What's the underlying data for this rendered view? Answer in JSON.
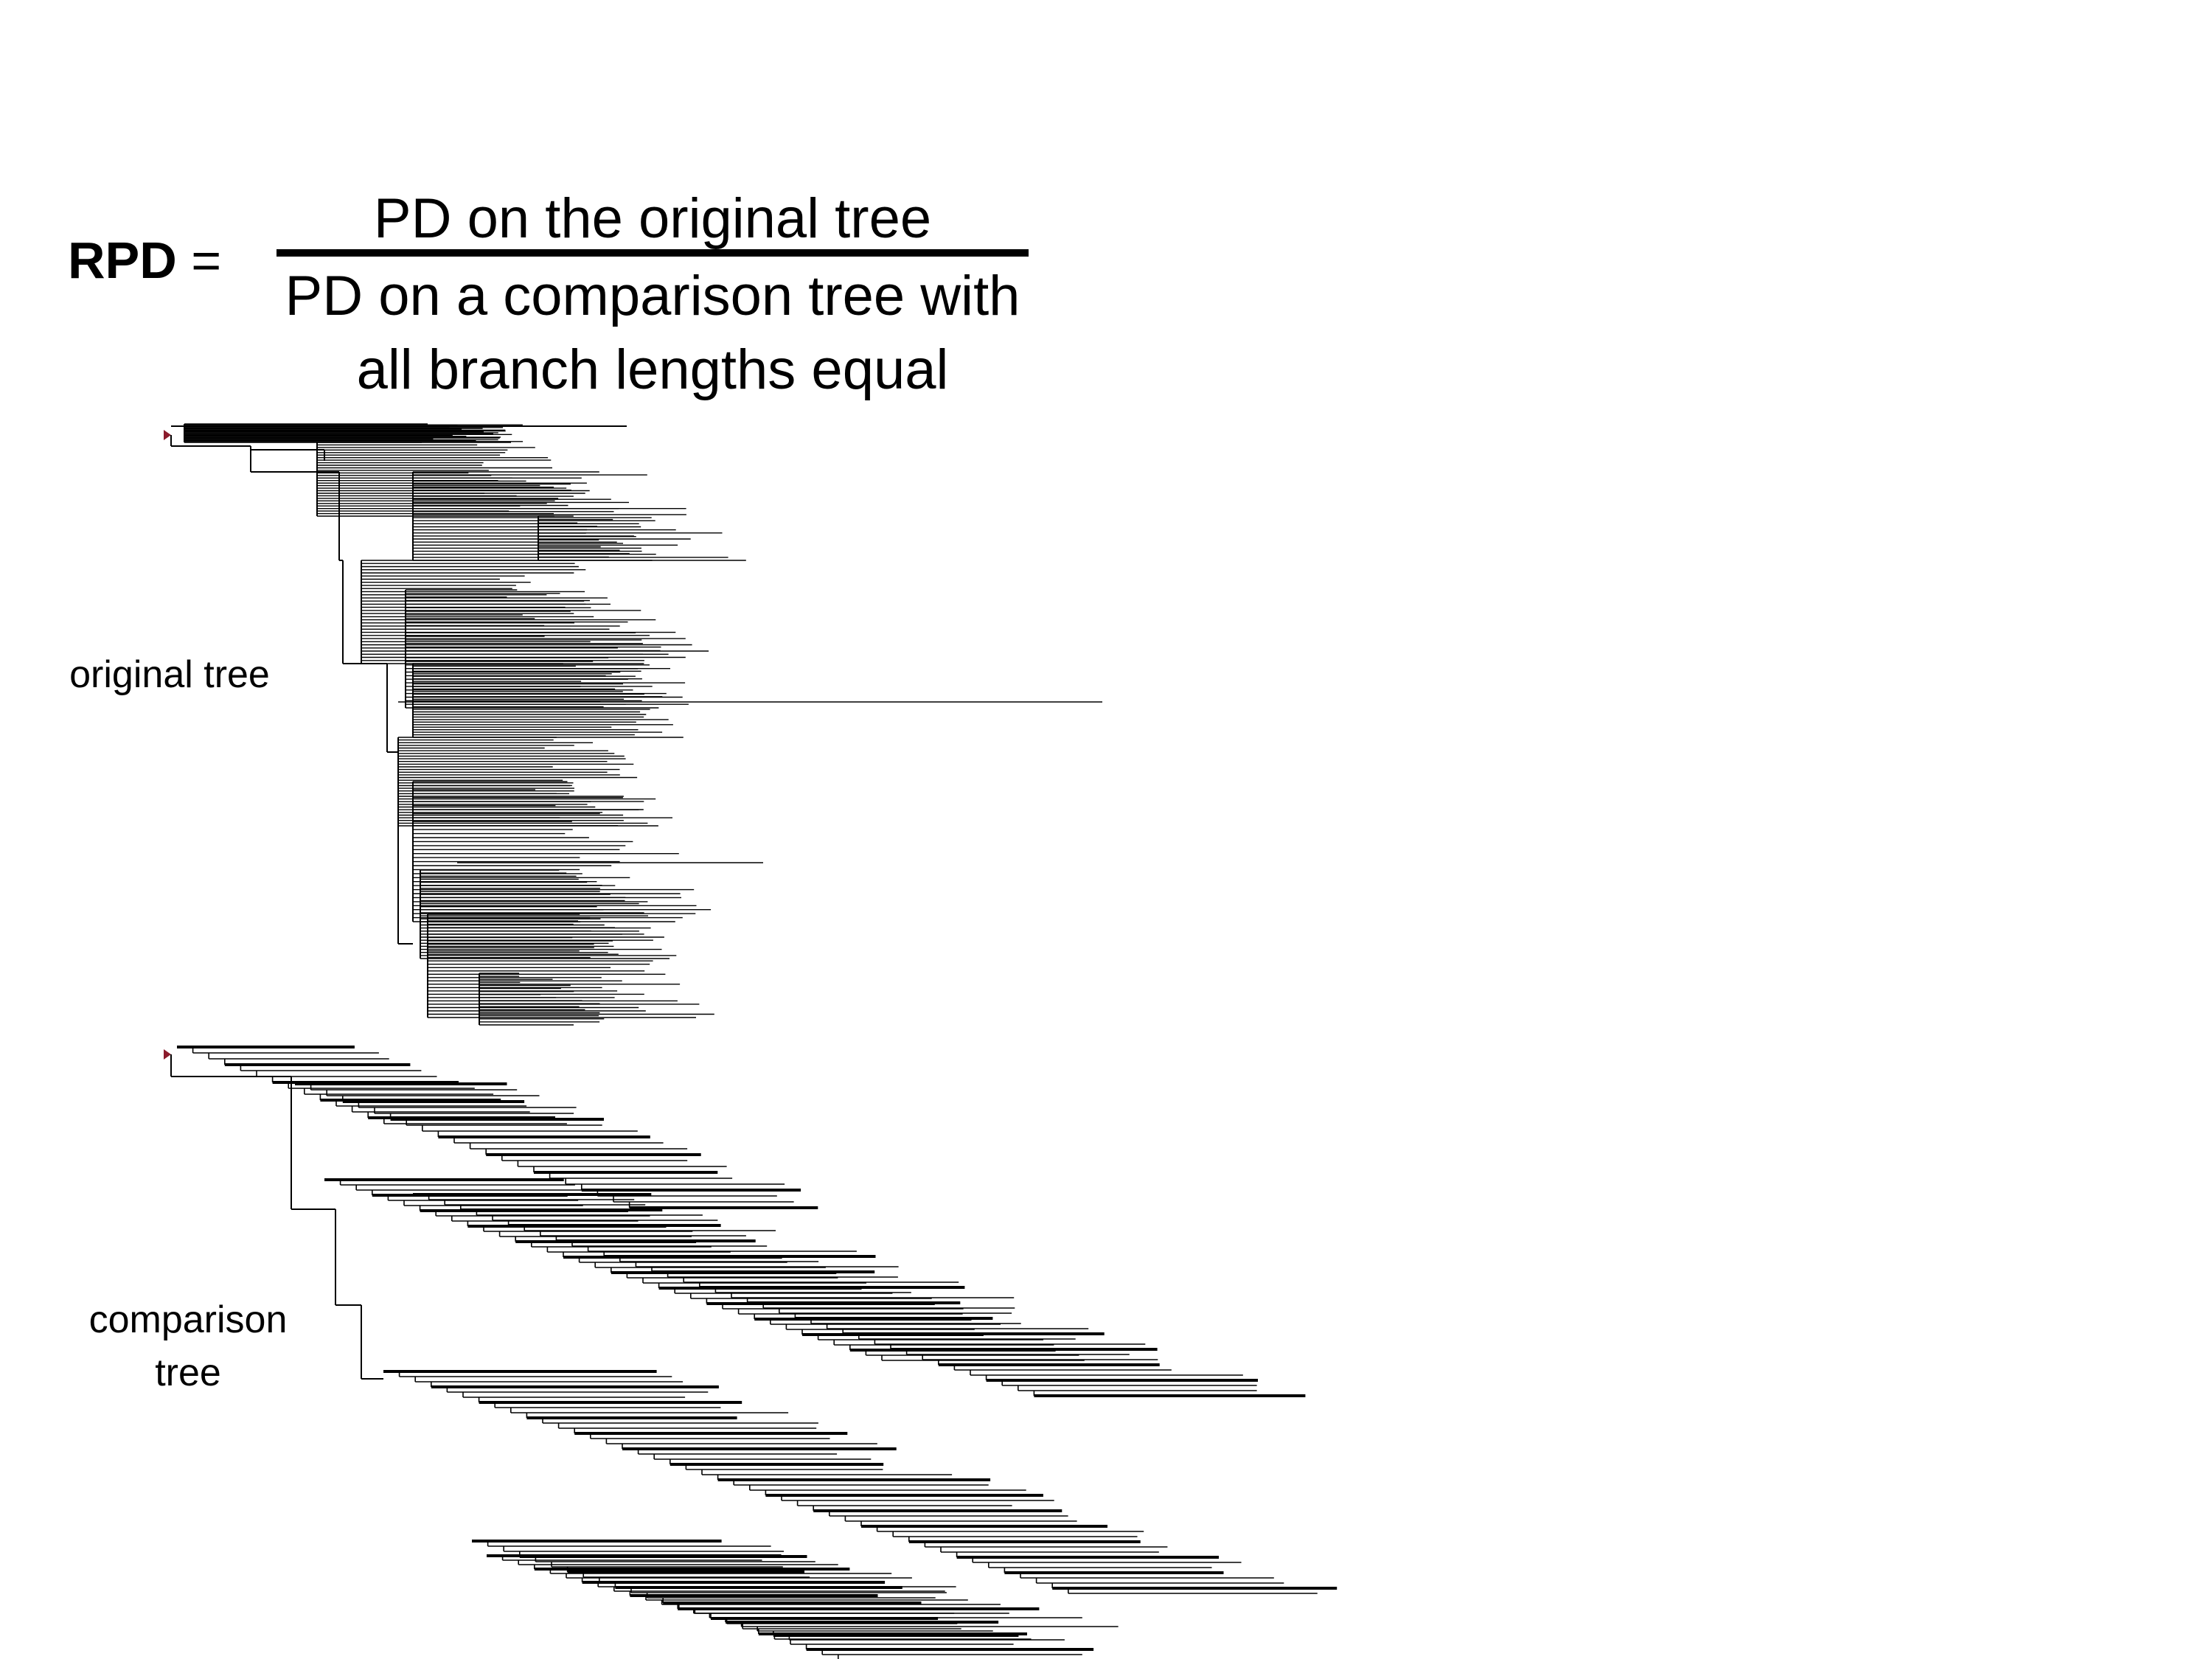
{
  "formula": {
    "lhs_bold": "RPD",
    "lhs_rest": " =",
    "numerator": "PD on the original tree",
    "denominator_line1": "PD on a comparison tree with",
    "denominator_line2": "all branch lengths equal"
  },
  "trees": {
    "original_label": "original tree",
    "comparison_label_line1": "comparison",
    "comparison_label_line2": "tree"
  },
  "colors": {
    "text": "#000000",
    "branch": "#000000",
    "root_marker": "#8b1a2b"
  }
}
